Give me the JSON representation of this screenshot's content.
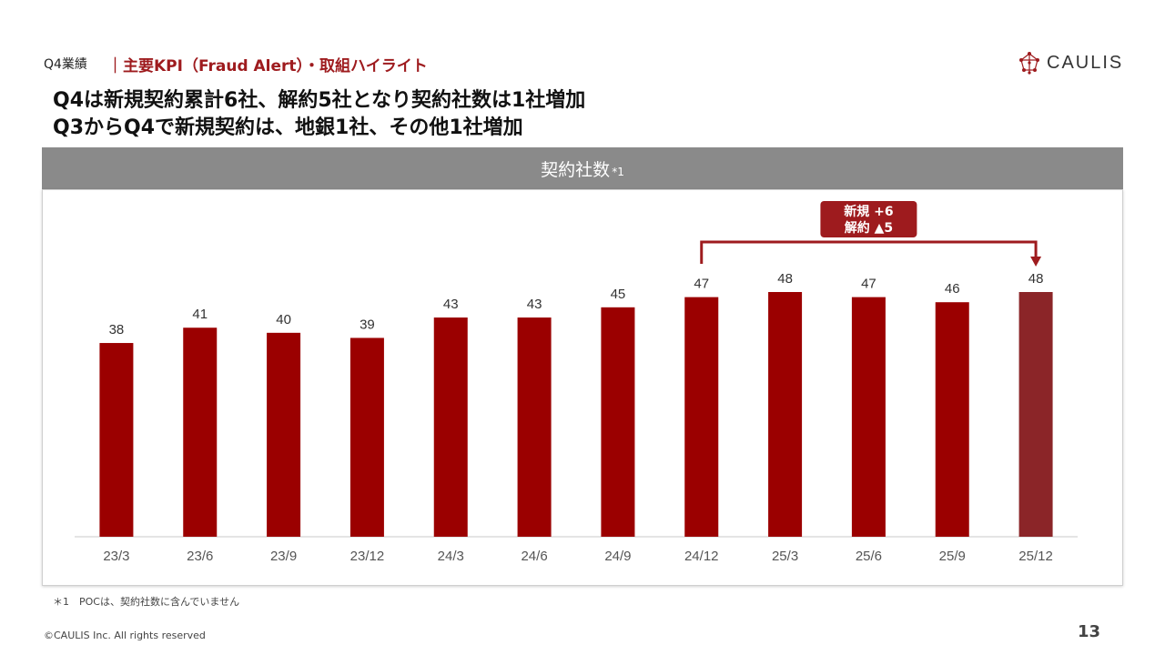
{
  "header": {
    "section": "Q4業績",
    "title": "｜主要KPI（Fraud Alert）・取組ハイライト"
  },
  "logo": {
    "text": "CAULIS",
    "icon": "network-node-icon"
  },
  "headline": {
    "line1": "Q4は新規契約累計6社、解約5社となり契約社数は1社増加",
    "line2": "Q3からQ4で新規契約は、地銀1社、その他1社増加"
  },
  "chart_header": {
    "title": "契約社数",
    "note": "*1"
  },
  "annotation": {
    "line1": "新規 +6",
    "line2": "解約 ▲5"
  },
  "colors": {
    "bar": "#9b0000",
    "bar_highlight": "#8b2528",
    "accent": "#9e1b1e",
    "header_bg": "#8a8a8a"
  },
  "chart_data": {
    "type": "bar",
    "title": "契約社数",
    "categories": [
      "23/3",
      "23/6",
      "23/9",
      "23/12",
      "24/3",
      "24/6",
      "24/9",
      "24/12",
      "25/3",
      "25/6",
      "25/9",
      "25/12"
    ],
    "values": [
      38,
      41,
      40,
      39,
      43,
      43,
      45,
      47,
      48,
      47,
      46,
      48
    ],
    "highlight_index": 11,
    "ylim": [
      0,
      55
    ],
    "grid": false,
    "xlabel": "",
    "ylabel": ""
  },
  "footnote": "＊1　POCは、契約社数に含んでいません",
  "copyright": "©CAULIS Inc. All rights reserved",
  "page_number": "13"
}
